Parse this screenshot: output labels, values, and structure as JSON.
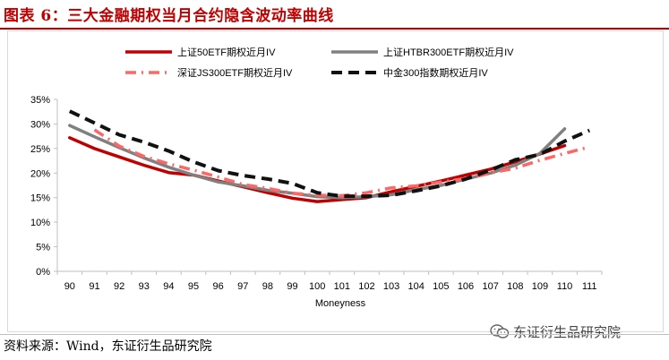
{
  "figure": {
    "title": "图表 6：三大金融期权当月合约隐含波动率曲线",
    "source": "资料来源：Wind，东证衍生品研究院",
    "watermark": "东证衍生品研究院"
  },
  "chart_data": {
    "type": "line",
    "title": "",
    "xlabel": "Moneyness",
    "ylabel": "",
    "categories": [
      "90",
      "91",
      "92",
      "93",
      "94",
      "95",
      "96",
      "97",
      "98",
      "99",
      "100",
      "101",
      "102",
      "103",
      "104",
      "105",
      "106",
      "107",
      "108",
      "109",
      "110",
      "111"
    ],
    "ylim": [
      0,
      35
    ],
    "yticks": [
      "0%",
      "5%",
      "10%",
      "15%",
      "20%",
      "25%",
      "30%",
      "35%"
    ],
    "grid": false,
    "legend_position": "top",
    "series": [
      {
        "name": "上证50ETF期权近月IV",
        "color": "#c00000",
        "dash": "solid",
        "values": [
          27.2,
          25.0,
          23.3,
          21.6,
          20.1,
          19.6,
          18.4,
          17.2,
          16.0,
          14.9,
          14.2,
          14.6,
          15.0,
          16.2,
          17.3,
          18.4,
          19.6,
          20.8,
          22.3,
          23.9,
          25.6,
          null
        ]
      },
      {
        "name": "上证HTBR300ETF期权近月IV",
        "color": "#808080",
        "dash": "solid",
        "values": [
          29.7,
          27.4,
          25.2,
          23.1,
          21.2,
          19.6,
          18.2,
          17.4,
          16.5,
          15.9,
          15.2,
          15.0,
          15.2,
          15.6,
          16.6,
          17.5,
          18.8,
          20.0,
          21.6,
          24.0,
          29.0,
          null
        ]
      },
      {
        "name": "深证JS300ETF期权近月IV",
        "color": "#ff6666",
        "dash": "dashdot",
        "values": [
          null,
          28.8,
          25.5,
          23.4,
          21.9,
          20.6,
          19.2,
          17.7,
          16.9,
          15.9,
          15.5,
          15.4,
          16.0,
          17.0,
          17.4,
          18.2,
          18.9,
          20.0,
          21.0,
          22.6,
          24.0,
          25.3
        ]
      },
      {
        "name": "中金300指数期权近月IV",
        "color": "#111111",
        "dash": "dash",
        "values": [
          32.6,
          30.2,
          27.8,
          26.3,
          24.5,
          22.3,
          20.5,
          19.5,
          18.8,
          17.9,
          16.0,
          15.3,
          15.3,
          15.5,
          16.4,
          17.4,
          18.8,
          20.6,
          22.7,
          23.8,
          26.5,
          28.7
        ]
      }
    ]
  }
}
